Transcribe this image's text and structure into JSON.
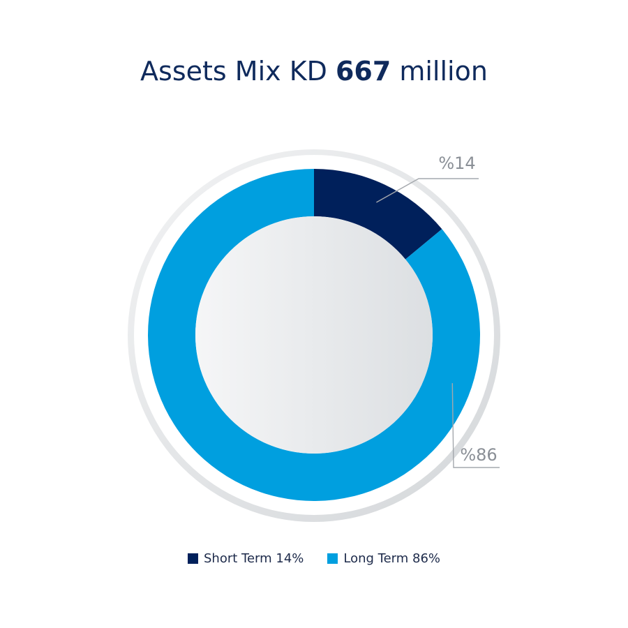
{
  "title": {
    "prefix": "Assets Mix KD ",
    "value": "667",
    "suffix": " million"
  },
  "colors": {
    "short_term": "#00205b",
    "long_term": "#009fdf",
    "label_text": "#8a8f96",
    "leader_line": "#a4a8ad"
  },
  "chart_data": {
    "type": "pie",
    "title": "Assets Mix KD 667 million",
    "categories": [
      "Short Term",
      "Long Term"
    ],
    "values": [
      14,
      86
    ],
    "data_labels": [
      "%14",
      "%86"
    ],
    "legend_labels": [
      "Short Term 14%",
      "Long Term  86%"
    ],
    "legend_position": "bottom",
    "donut": true
  }
}
